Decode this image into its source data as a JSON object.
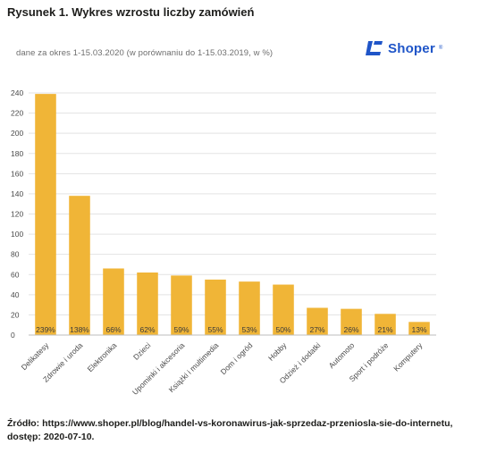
{
  "figure_title": "Rysunek 1. Wykres wzrostu liczby zamówień",
  "logo": {
    "text": "Shoper",
    "registered": "®",
    "color": "#1f55c8"
  },
  "source_line1": "Źródło: https://www.shoper.pl/blog/handel-vs-koronawirus-jak-sprzedaz-przeniosla-sie-do-internetu,",
  "source_line2": "dostęp: 2020-07-10.",
  "chart_data": {
    "type": "bar",
    "subtitle": "dane za okres 1-15.03.2020 (w porównaniu do 1-15.03.2019, w %)",
    "categories": [
      "Delikatesy",
      "Zdrowie i uroda",
      "Elektronika",
      "Dzieci",
      "Upominki i akcesoria",
      "Książki i multimedia",
      "Dom i ogród",
      "Hobby",
      "Odzież i dodatki",
      "Automoto",
      "Sport i podróże",
      "Komputery"
    ],
    "values": [
      239,
      138,
      66,
      62,
      59,
      55,
      53,
      50,
      27,
      26,
      21,
      13
    ],
    "value_labels": [
      "239%",
      "138%",
      "66%",
      "62%",
      "59%",
      "55%",
      "53%",
      "50%",
      "27%",
      "26%",
      "21%",
      "13%"
    ],
    "yticks": [
      0,
      20,
      40,
      60,
      80,
      100,
      120,
      140,
      160,
      180,
      200,
      220,
      240
    ],
    "ylim": [
      0,
      240
    ],
    "xlabel": "",
    "ylabel": "",
    "grid": true,
    "bar_color": "#f0b537",
    "grid_color": "#e3e3e3"
  }
}
